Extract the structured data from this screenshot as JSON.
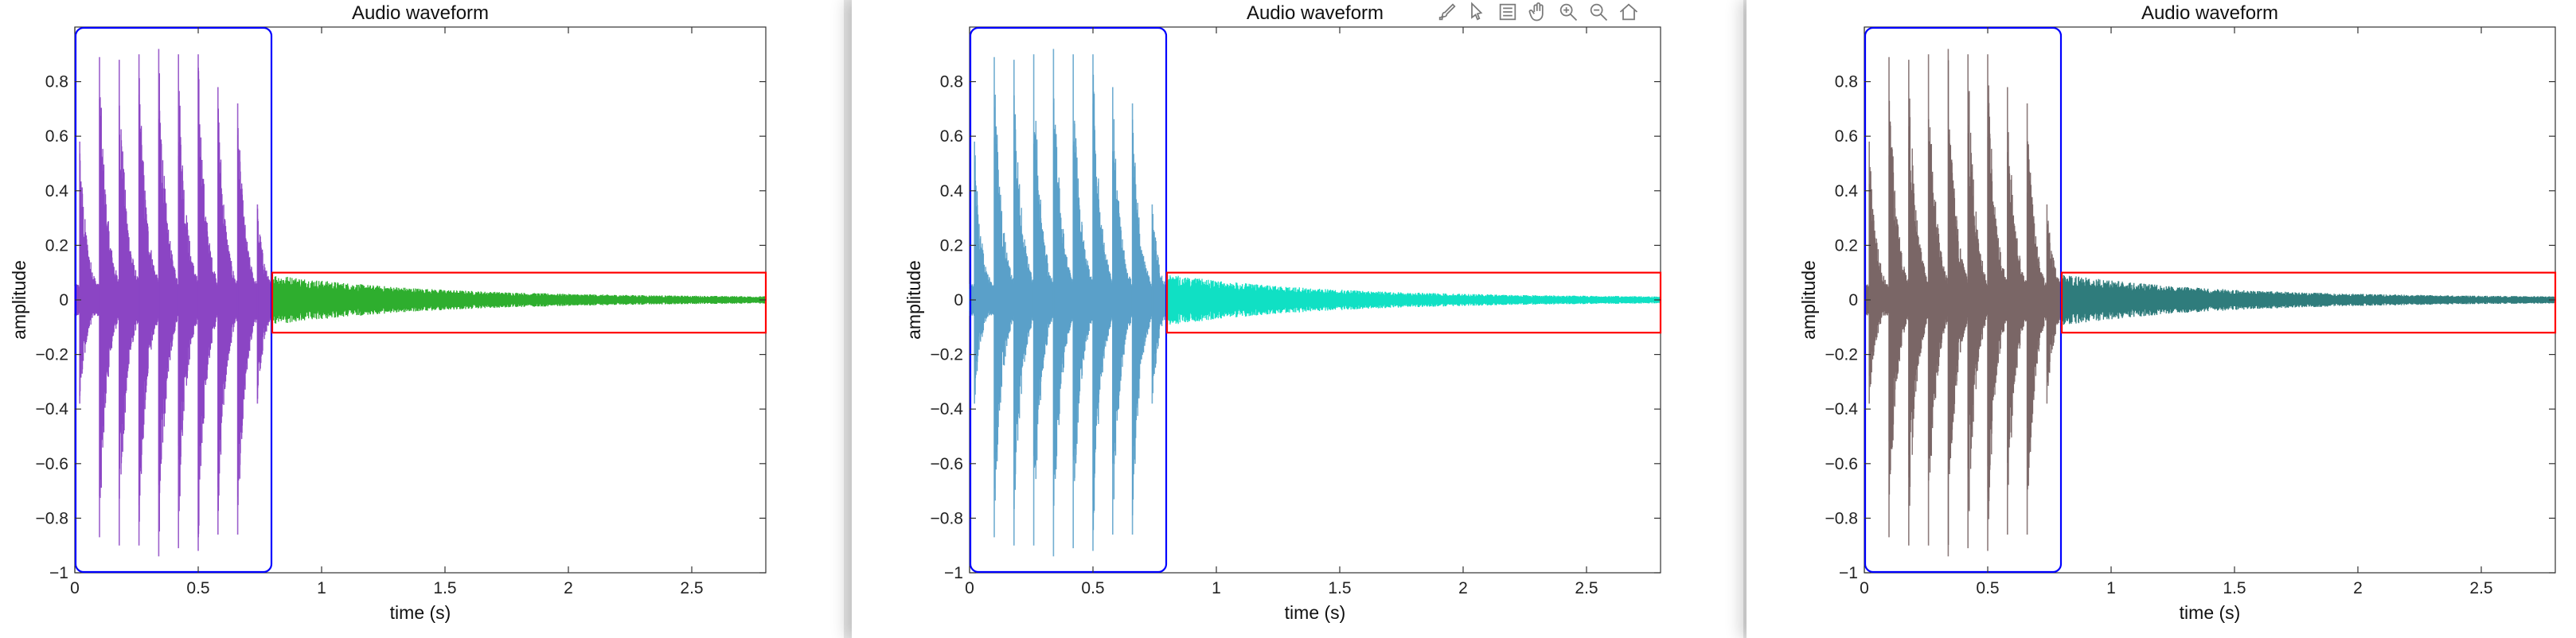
{
  "windows": [
    {
      "name": "chart-window-1",
      "toolbar_visible": false
    },
    {
      "name": "chart-window-2",
      "toolbar_visible": true
    },
    {
      "name": "chart-window-3",
      "toolbar_visible": false
    }
  ],
  "toolbar": {
    "icons": [
      "brush-icon",
      "data-cursor-icon",
      "insert-legend-icon",
      "pan-hand-icon",
      "zoom-in-icon",
      "zoom-out-icon",
      "home-icon"
    ]
  },
  "chart_data": [
    {
      "type": "line",
      "title": "Audio waveform",
      "xlabel": "time (s)",
      "ylabel": "amplitude",
      "xlim": [
        0,
        2.8
      ],
      "ylim": [
        -1,
        1
      ],
      "xticks": [
        0,
        0.5,
        1,
        1.5,
        2,
        2.5
      ],
      "xtick_labels": [
        "0",
        "0.5",
        "1",
        "1.5",
        "2",
        "2.5"
      ],
      "yticks": [
        -1,
        -0.8,
        -0.6,
        -0.4,
        -0.2,
        0,
        0.2,
        0.4,
        0.6,
        0.8
      ],
      "ytick_labels": [
        "−1",
        "−0.8",
        "−0.6",
        "−0.4",
        "−0.2",
        "0",
        "0.2",
        "0.4",
        "0.6",
        "0.8"
      ],
      "grid": false,
      "segment_colors": [
        "#8b45c4",
        "#2eae2e"
      ],
      "boxes": [
        {
          "x": [
            0,
            0.8
          ],
          "y": [
            -1,
            1
          ],
          "color": "#0000ff"
        },
        {
          "x": [
            0.8,
            2.8
          ],
          "y": [
            -0.12,
            0.1
          ],
          "color": "#ff0000"
        }
      ],
      "series": [
        {
          "segments": [
            {
              "t": [
                0,
                0.8
              ],
              "color": "#8b45c4"
            },
            {
              "t": [
                0.8,
                2.8
              ],
              "color": "#2eae2e"
            }
          ],
          "peaks": [
            {
              "t": 0.02,
              "pos": 0.58,
              "neg": -0.38
            },
            {
              "t": 0.1,
              "pos": 0.89,
              "neg": -0.87
            },
            {
              "t": 0.18,
              "pos": 0.88,
              "neg": -0.9
            },
            {
              "t": 0.26,
              "pos": 0.9,
              "neg": -0.9
            },
            {
              "t": 0.34,
              "pos": 0.92,
              "neg": -0.94
            },
            {
              "t": 0.42,
              "pos": 0.9,
              "neg": -0.91
            },
            {
              "t": 0.5,
              "pos": 0.9,
              "neg": -0.92
            },
            {
              "t": 0.58,
              "pos": 0.78,
              "neg": -0.86
            },
            {
              "t": 0.66,
              "pos": 0.72,
              "neg": -0.86
            },
            {
              "t": 0.74,
              "pos": 0.35,
              "neg": -0.38
            }
          ]
        }
      ]
    },
    {
      "type": "line",
      "title": "Audio waveform",
      "xlabel": "time (s)",
      "ylabel": "amplitude",
      "xlim": [
        0,
        2.8
      ],
      "ylim": [
        -1,
        1
      ],
      "xticks": [
        0,
        0.5,
        1,
        1.5,
        2,
        2.5
      ],
      "xtick_labels": [
        "0",
        "0.5",
        "1",
        "1.5",
        "2",
        "2.5"
      ],
      "yticks": [
        -1,
        -0.8,
        -0.6,
        -0.4,
        -0.2,
        0,
        0.2,
        0.4,
        0.6,
        0.8
      ],
      "ytick_labels": [
        "−1",
        "−0.8",
        "−0.6",
        "−0.4",
        "−0.2",
        "0",
        "0.2",
        "0.4",
        "0.6",
        "0.8"
      ],
      "grid": false,
      "segment_colors": [
        "#5aa0c9",
        "#10e0c4"
      ],
      "boxes": [
        {
          "x": [
            0,
            0.8
          ],
          "y": [
            -1,
            1
          ],
          "color": "#0000ff"
        },
        {
          "x": [
            0.8,
            2.8
          ],
          "y": [
            -0.12,
            0.1
          ],
          "color": "#ff0000"
        }
      ],
      "series": [
        {
          "segments": [
            {
              "t": [
                0,
                0.8
              ],
              "color": "#5aa0c9"
            },
            {
              "t": [
                0.8,
                2.8
              ],
              "color": "#10e0c4"
            }
          ],
          "peaks": [
            {
              "t": 0.02,
              "pos": 0.58,
              "neg": -0.38
            },
            {
              "t": 0.1,
              "pos": 0.89,
              "neg": -0.87
            },
            {
              "t": 0.18,
              "pos": 0.88,
              "neg": -0.9
            },
            {
              "t": 0.26,
              "pos": 0.9,
              "neg": -0.9
            },
            {
              "t": 0.34,
              "pos": 0.92,
              "neg": -0.94
            },
            {
              "t": 0.42,
              "pos": 0.9,
              "neg": -0.91
            },
            {
              "t": 0.5,
              "pos": 0.9,
              "neg": -0.92
            },
            {
              "t": 0.58,
              "pos": 0.78,
              "neg": -0.86
            },
            {
              "t": 0.66,
              "pos": 0.72,
              "neg": -0.86
            },
            {
              "t": 0.74,
              "pos": 0.35,
              "neg": -0.38
            }
          ]
        }
      ]
    },
    {
      "type": "line",
      "title": "Audio waveform",
      "xlabel": "time (s)",
      "ylabel": "amplitude",
      "xlim": [
        0,
        2.8
      ],
      "ylim": [
        -1,
        1
      ],
      "xticks": [
        0,
        0.5,
        1,
        1.5,
        2,
        2.5
      ],
      "xtick_labels": [
        "0",
        "0.5",
        "1",
        "1.5",
        "2",
        "2.5"
      ],
      "yticks": [
        -1,
        -0.8,
        -0.6,
        -0.4,
        -0.2,
        0,
        0.2,
        0.4,
        0.6,
        0.8
      ],
      "ytick_labels": [
        "−1",
        "−0.8",
        "−0.6",
        "−0.4",
        "−0.2",
        "0",
        "0.2",
        "0.4",
        "0.6",
        "0.8"
      ],
      "grid": false,
      "segment_colors": [
        "#7a6666",
        "#2f7c7c"
      ],
      "boxes": [
        {
          "x": [
            0,
            0.8
          ],
          "y": [
            -1,
            1
          ],
          "color": "#0000ff"
        },
        {
          "x": [
            0.8,
            2.8
          ],
          "y": [
            -0.12,
            0.1
          ],
          "color": "#ff0000"
        }
      ],
      "series": [
        {
          "segments": [
            {
              "t": [
                0,
                0.8
              ],
              "color": "#7a6666"
            },
            {
              "t": [
                0.8,
                2.8
              ],
              "color": "#2f7c7c"
            }
          ],
          "peaks": [
            {
              "t": 0.02,
              "pos": 0.58,
              "neg": -0.38
            },
            {
              "t": 0.1,
              "pos": 0.89,
              "neg": -0.87
            },
            {
              "t": 0.18,
              "pos": 0.88,
              "neg": -0.9
            },
            {
              "t": 0.26,
              "pos": 0.9,
              "neg": -0.9
            },
            {
              "t": 0.34,
              "pos": 0.92,
              "neg": -0.94
            },
            {
              "t": 0.42,
              "pos": 0.9,
              "neg": -0.91
            },
            {
              "t": 0.5,
              "pos": 0.9,
              "neg": -0.92
            },
            {
              "t": 0.58,
              "pos": 0.78,
              "neg": -0.86
            },
            {
              "t": 0.66,
              "pos": 0.72,
              "neg": -0.86
            },
            {
              "t": 0.74,
              "pos": 0.35,
              "neg": -0.38
            }
          ]
        }
      ]
    }
  ]
}
